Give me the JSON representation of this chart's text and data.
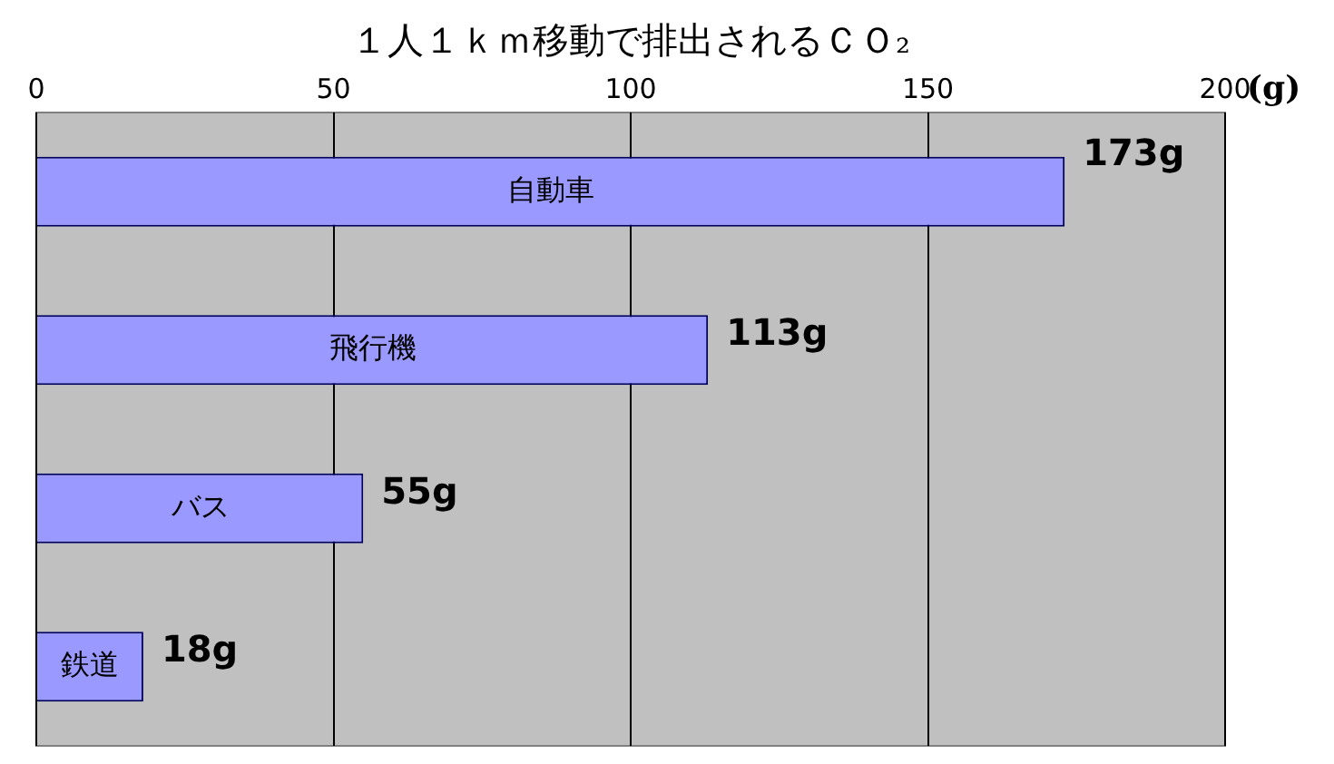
{
  "chart_data": {
    "type": "bar",
    "orientation": "horizontal",
    "title": "１人１ｋｍ移動で排出されるＣＯ₂",
    "xlabel": "(g)",
    "categories": [
      "自動車",
      "飛行機",
      "バス",
      "鉄道"
    ],
    "values": [
      173,
      113,
      55,
      18
    ],
    "value_labels": [
      "173g",
      "113g",
      "55g",
      "18g"
    ],
    "color": "#9999ff",
    "xlim": [
      0,
      200
    ],
    "xticks": [
      0,
      50,
      100,
      150,
      200
    ],
    "grid": "x",
    "legend": false
  }
}
